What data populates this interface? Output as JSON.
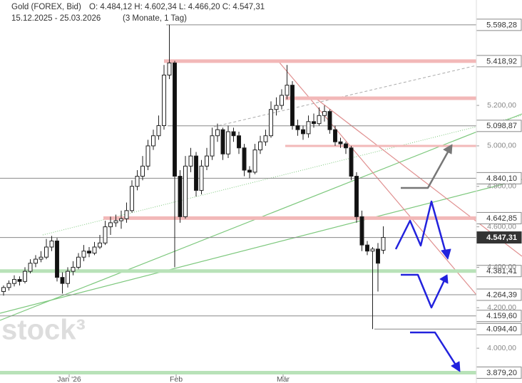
{
  "chart_data": {
    "type": "candlestick",
    "title": "Gold (FOREX, Bid)",
    "ohlc_text": "O: 4.484,12  H: 4.602,34  L: 4.466,20  C: 4.547,31",
    "period": "15.12.2025 - 25.03.2026",
    "interval": "(3 Monate, 1 Tag)",
    "watermark": "stock³",
    "categories": [
      null,
      null,
      null,
      null,
      null,
      null,
      null,
      null,
      null,
      null,
      null,
      null,
      "Jan '26",
      null,
      null,
      null,
      null,
      null,
      null,
      null,
      null,
      null,
      null,
      null,
      null,
      null,
      null,
      null,
      null,
      null,
      null,
      null,
      "Feb",
      null,
      null,
      null,
      null,
      null,
      null,
      null,
      null,
      null,
      null,
      null,
      null,
      null,
      null,
      null,
      null,
      null,
      null,
      null,
      "Mär",
      null,
      null,
      null,
      null,
      null,
      null,
      null,
      null,
      null,
      null,
      null,
      null,
      null,
      null,
      null,
      null,
      null,
      null,
      null
    ],
    "open": [
      4280,
      4300,
      4320,
      4340,
      4330,
      4380,
      4420,
      4440,
      4450,
      4500,
      4530,
      4350,
      4320,
      4380,
      4400,
      4450,
      4480,
      4470,
      4500,
      4520,
      4600,
      4620,
      4630,
      4640,
      4680,
      4800,
      4850,
      4900,
      5000,
      5050,
      5100,
      5350,
      5410,
      4850,
      4650,
      4900,
      4950,
      4780,
      4900,
      4950,
      5050,
      5080,
      4960,
      5070,
      5050,
      4990,
      4880,
      4870,
      4980,
      5020,
      5050,
      5180,
      5200,
      5250,
      5300,
      5100,
      5080,
      5060,
      5120,
      5110,
      5150,
      5170,
      5080,
      5020,
      5010,
      4990,
      4850,
      4650,
      4510,
      4480,
      4490,
      4484.12
    ],
    "high": [
      4310,
      4335,
      4360,
      4355,
      4400,
      4440,
      4460,
      4480,
      4540,
      4555,
      4545,
      4375,
      4400,
      4430,
      4470,
      4510,
      4500,
      4525,
      4560,
      4630,
      4650,
      4660,
      4680,
      4720,
      4830,
      4880,
      4950,
      5030,
      5080,
      5150,
      5400,
      5598.28,
      5420,
      4880,
      4950,
      4990,
      4970,
      4930,
      4990,
      5090,
      5110,
      5090,
      5100,
      5090,
      5070,
      5010,
      4900,
      5010,
      5050,
      5080,
      5220,
      5240,
      5280,
      5400,
      5320,
      5130,
      5100,
      5150,
      5160,
      5190,
      5200,
      5180,
      5100,
      5040,
      5020,
      5000,
      4870,
      4680,
      4530,
      4500,
      4520,
      4602.34
    ],
    "low": [
      4260,
      4285,
      4305,
      4310,
      4320,
      4370,
      4400,
      4425,
      4440,
      4480,
      4330,
      4270,
      4300,
      4360,
      4390,
      4430,
      4450,
      4460,
      4490,
      4510,
      4560,
      4600,
      4590,
      4620,
      4670,
      4780,
      4830,
      4880,
      4980,
      5030,
      5080,
      5330,
      4400,
      4620,
      4640,
      4870,
      4750,
      4760,
      4880,
      4930,
      5020,
      4930,
      4940,
      5020,
      4960,
      4850,
      4840,
      4860,
      4960,
      5000,
      5040,
      5150,
      5180,
      5230,
      5080,
      5050,
      5030,
      5040,
      5090,
      5100,
      5120,
      5060,
      5000,
      4990,
      4960,
      4830,
      4620,
      4480,
      4460,
      4094.4,
      4280,
      4466.2
    ],
    "close": [
      4300,
      4320,
      4340,
      4330,
      4380,
      4420,
      4440,
      4450,
      4500,
      4530,
      4350,
      4320,
      4380,
      4400,
      4450,
      4480,
      4470,
      4500,
      4520,
      4600,
      4620,
      4630,
      4640,
      4680,
      4800,
      4850,
      4900,
      5000,
      5050,
      5100,
      5350,
      5410,
      4850,
      4650,
      4900,
      4950,
      4780,
      4900,
      4950,
      5050,
      5080,
      4960,
      5070,
      5050,
      4990,
      4880,
      4870,
      4980,
      5020,
      5050,
      5180,
      5200,
      5250,
      5300,
      5100,
      5080,
      5060,
      5120,
      5110,
      5150,
      5170,
      5080,
      5020,
      5010,
      4990,
      4850,
      4650,
      4510,
      4480,
      4490,
      4420,
      4547.31
    ],
    "ylim": [
      3828,
      5721
    ],
    "yticks": [
      {
        "value": 4000,
        "label": "4.000,00"
      },
      {
        "value": 4200,
        "label": "4.200,00"
      },
      {
        "value": 4400,
        "label": "4.400,00"
      },
      {
        "value": 4600,
        "label": "4.600,00"
      },
      {
        "value": 4800,
        "label": "4.800,00"
      },
      {
        "value": 5000,
        "label": "5.000,00"
      },
      {
        "value": 5200,
        "label": "5.200,00"
      }
    ],
    "levels": [
      {
        "value": 5598.28,
        "label": "5.598,28",
        "style": "grey"
      },
      {
        "value": 5418.92,
        "label": "5.418,92",
        "style": "red"
      },
      {
        "value": 5098.87,
        "label": "5.098,87",
        "style": "grey"
      },
      {
        "value": 4840.1,
        "label": "4.840,10",
        "style": "grey"
      },
      {
        "value": 4642.85,
        "label": "4.642,85",
        "style": "red"
      },
      {
        "value": 4547.31,
        "label": "4.547,31",
        "style": "current"
      },
      {
        "value": 4381.41,
        "label": "4.381,41",
        "style": "green"
      },
      {
        "value": 4264.39,
        "label": "4.264,39",
        "style": "grey"
      },
      {
        "value": 4159.6,
        "label": "4.159,60",
        "style": "grey"
      },
      {
        "value": 4094.4,
        "label": "4.094,40",
        "style": "grey"
      },
      {
        "value": 3879.2,
        "label": "3.879,20",
        "style": "green"
      }
    ]
  }
}
